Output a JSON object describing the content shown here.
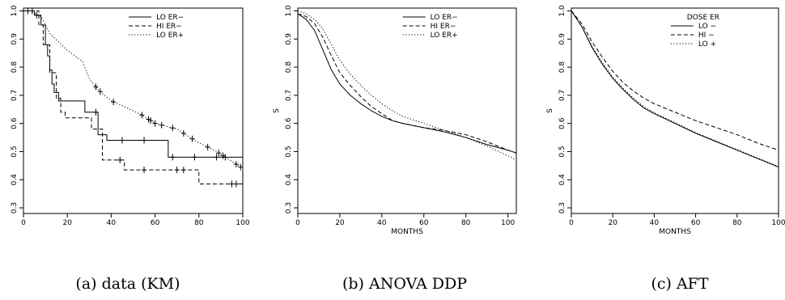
{
  "captions": [
    "(a) data (KM)",
    "(b) ANOVA DDP",
    "(c) AFT"
  ],
  "chart_data": [
    {
      "type": "line",
      "xlabel": "",
      "ylabel": "",
      "xlim": [
        0,
        100
      ],
      "ylim": [
        0.28,
        1.01
      ],
      "xticks": [
        "0",
        "20",
        "40",
        "60",
        "80",
        "100"
      ],
      "yticks": [
        "0.3",
        "0.4",
        "0.5",
        "0.6",
        "0.7",
        "0.8",
        "0.9",
        "1.0"
      ],
      "legend_title": "",
      "legend_position": "top-right",
      "series": [
        {
          "name": "LO ER−",
          "style": "solid",
          "step": true,
          "x": [
            0,
            5,
            8,
            10,
            11,
            12,
            13,
            14,
            16,
            24,
            28,
            34,
            38,
            64,
            66,
            100
          ],
          "y": [
            1.0,
            0.985,
            0.95,
            0.88,
            0.84,
            0.79,
            0.74,
            0.71,
            0.68,
            0.68,
            0.64,
            0.56,
            0.54,
            0.54,
            0.48,
            0.48
          ],
          "censor": [
            2,
            4,
            6,
            33,
            45,
            55,
            68,
            78,
            88,
            92
          ]
        },
        {
          "name": "HI ER−",
          "style": "dashed",
          "step": true,
          "x": [
            0,
            7,
            9,
            12,
            15,
            17,
            19,
            27,
            31,
            36,
            46,
            78,
            80,
            100
          ],
          "y": [
            1.0,
            0.95,
            0.88,
            0.78,
            0.69,
            0.64,
            0.62,
            0.62,
            0.58,
            0.47,
            0.435,
            0.435,
            0.385,
            0.385
          ],
          "censor": [
            44,
            55,
            70,
            73,
            95,
            97
          ]
        },
        {
          "name": "LO ER+",
          "style": "dotted",
          "step": false,
          "x": [
            0,
            3,
            8,
            12,
            20,
            27,
            30,
            34,
            40,
            46,
            54,
            60,
            70,
            78,
            88,
            92,
            96,
            100
          ],
          "y": [
            1.0,
            1.0,
            0.98,
            0.92,
            0.86,
            0.82,
            0.76,
            0.72,
            0.68,
            0.66,
            0.63,
            0.6,
            0.58,
            0.54,
            0.5,
            0.48,
            0.46,
            0.44
          ],
          "censor": [
            33,
            35,
            41,
            54,
            57,
            58,
            60,
            63,
            68,
            73,
            77,
            84,
            89,
            91,
            97,
            99
          ]
        }
      ]
    },
    {
      "type": "line",
      "xlabel": "MONTHS",
      "ylabel": "S",
      "xlim": [
        0,
        104
      ],
      "ylim": [
        0.28,
        1.01
      ],
      "xticks": [
        "0",
        "20",
        "40",
        "60",
        "80",
        "100"
      ],
      "yticks": [
        "0.3",
        "0.4",
        "0.5",
        "0.6",
        "0.7",
        "0.8",
        "0.9",
        "1.0"
      ],
      "legend_title": "",
      "legend_position": "top-right",
      "series": [
        {
          "name": "LO ER−",
          "style": "solid",
          "x": [
            0,
            4,
            8,
            12,
            16,
            20,
            25,
            30,
            35,
            40,
            45,
            50,
            60,
            70,
            80,
            90,
            100,
            104
          ],
          "y": [
            0.99,
            0.97,
            0.93,
            0.86,
            0.79,
            0.74,
            0.7,
            0.67,
            0.645,
            0.625,
            0.61,
            0.6,
            0.585,
            0.57,
            0.55,
            0.525,
            0.505,
            0.495
          ]
        },
        {
          "name": "HI ER−",
          "style": "dashed",
          "x": [
            0,
            4,
            8,
            12,
            16,
            20,
            25,
            30,
            35,
            40,
            45,
            50,
            60,
            70,
            80,
            90,
            100,
            104
          ],
          "y": [
            0.99,
            0.98,
            0.955,
            0.905,
            0.84,
            0.78,
            0.735,
            0.695,
            0.66,
            0.635,
            0.61,
            0.6,
            0.585,
            0.575,
            0.56,
            0.535,
            0.505,
            0.495
          ]
        },
        {
          "name": "LO ER+",
          "style": "dotted",
          "x": [
            0,
            4,
            8,
            12,
            16,
            20,
            25,
            30,
            35,
            40,
            45,
            50,
            60,
            70,
            80,
            90,
            100,
            104
          ],
          "y": [
            1.0,
            0.99,
            0.97,
            0.935,
            0.88,
            0.825,
            0.775,
            0.735,
            0.7,
            0.67,
            0.645,
            0.625,
            0.6,
            0.575,
            0.55,
            0.52,
            0.485,
            0.47
          ]
        }
      ]
    },
    {
      "type": "line",
      "xlabel": "MONTHS",
      "ylabel": "S",
      "xlim": [
        0,
        100
      ],
      "ylim": [
        0.28,
        1.01
      ],
      "xticks": [
        "0",
        "20",
        "40",
        "60",
        "80",
        "100"
      ],
      "yticks": [
        "0.3",
        "0.4",
        "0.5",
        "0.6",
        "0.7",
        "0.8",
        "0.9",
        "1.0"
      ],
      "legend_title": "DOSE ER",
      "legend_position": "top-right",
      "series": [
        {
          "name": "LO −",
          "style": "solid",
          "x": [
            0,
            5,
            10,
            15,
            20,
            25,
            30,
            35,
            40,
            50,
            60,
            70,
            80,
            90,
            100
          ],
          "y": [
            1.0,
            0.945,
            0.87,
            0.81,
            0.76,
            0.72,
            0.685,
            0.655,
            0.635,
            0.6,
            0.565,
            0.535,
            0.505,
            0.475,
            0.445
          ]
        },
        {
          "name": "HI  −",
          "style": "dashed",
          "x": [
            0,
            5,
            10,
            15,
            20,
            25,
            30,
            35,
            40,
            50,
            60,
            70,
            80,
            90,
            100
          ],
          "y": [
            1.0,
            0.955,
            0.89,
            0.835,
            0.785,
            0.745,
            0.715,
            0.69,
            0.67,
            0.64,
            0.61,
            0.585,
            0.56,
            0.53,
            0.505
          ]
        },
        {
          "name": "LO +",
          "style": "dotted",
          "x": [
            0,
            5,
            10,
            15,
            20,
            25,
            30,
            35,
            40,
            50,
            60,
            70,
            80,
            90,
            100
          ],
          "y": [
            1.0,
            0.945,
            0.875,
            0.815,
            0.765,
            0.725,
            0.69,
            0.66,
            0.638,
            0.603,
            0.568,
            0.537,
            0.507,
            0.477,
            0.447
          ]
        }
      ]
    }
  ]
}
